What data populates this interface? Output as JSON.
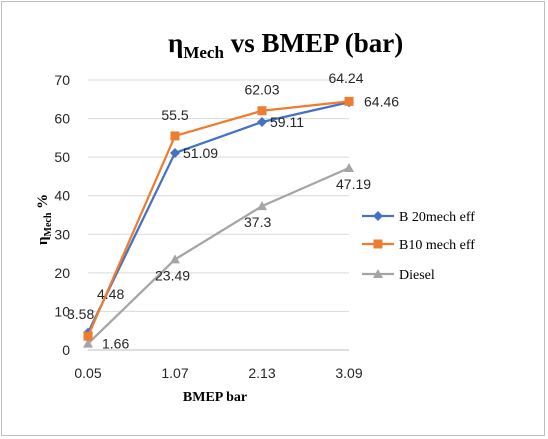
{
  "chart_data": {
    "type": "line",
    "title": {
      "symbol": "η",
      "subscript": "Mech",
      "rest": " vs BMEP (bar)"
    },
    "xlabel": "BMEP bar",
    "ylabel": {
      "symbol": "η",
      "subscript": "Mech",
      "rest": " %"
    },
    "categories": [
      "0.05",
      "1.07",
      "2.13",
      "3.09"
    ],
    "ylim": [
      0,
      70
    ],
    "yticks": [
      0,
      10,
      20,
      30,
      40,
      50,
      60,
      70
    ],
    "grid": "horizontal",
    "legend": "right",
    "series": [
      {
        "name": "B 20mech eff",
        "values": [
          4.48,
          51.09,
          59.11,
          64.24
        ],
        "labels": [
          "4.48",
          "51.09",
          "59.11",
          "64.24"
        ],
        "color": "#4472c4",
        "marker": "diamond"
      },
      {
        "name": "B10 mech eff",
        "values": [
          3.58,
          55.5,
          62.03,
          64.46
        ],
        "labels": [
          "3.58",
          "55.5",
          "62.03",
          "64.46"
        ],
        "color": "#ed7d31",
        "marker": "square"
      },
      {
        "name": "Diesel",
        "values": [
          1.66,
          23.49,
          37.3,
          47.19
        ],
        "labels": [
          "1.66",
          "23.49",
          "37.3",
          "47.19"
        ],
        "color": "#a5a5a5",
        "marker": "triangle"
      }
    ]
  }
}
